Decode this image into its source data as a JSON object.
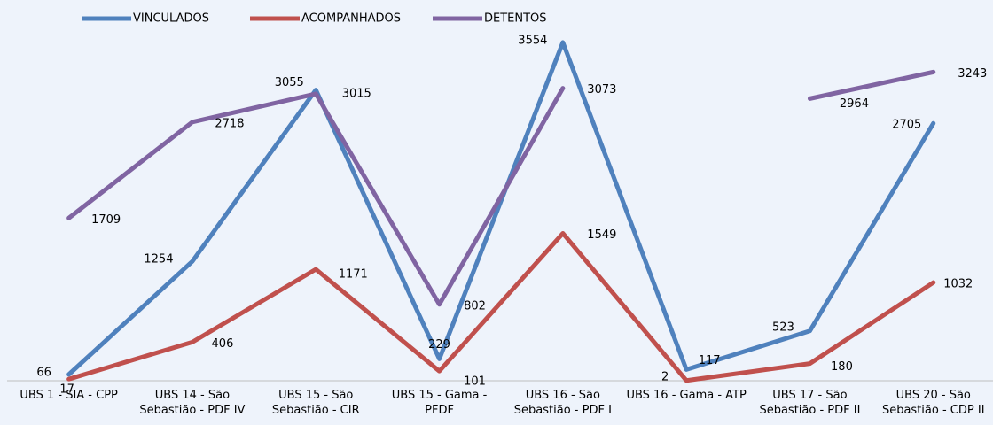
{
  "chart_data": {
    "type": "line",
    "categories": [
      "UBS 1 - SIA - CPP",
      "UBS 14 - São Sebastião - PDF IV",
      "UBS 15 - São Sebastião - CIR",
      "UBS 15 - Gama - PFDF",
      "UBS 16 - São Sebastião - PDF I",
      "UBS 16 - Gama - ATP",
      "UBS 17 - São Sebastião - PDF II",
      "UBS 20 - São Sebastião - CDP II"
    ],
    "series": [
      {
        "name": "VINCULADOS",
        "color": "#4f81bd",
        "values": [
          66,
          1254,
          3055,
          229,
          3554,
          117,
          523,
          2705
        ]
      },
      {
        "name": "ACOMPANHADOS",
        "color": "#c0504d",
        "values": [
          17,
          406,
          1171,
          101,
          1549,
          2,
          180,
          1032
        ]
      },
      {
        "name": "DETENTOS",
        "color": "#8064a2",
        "values": [
          1709,
          2718,
          3015,
          802,
          3073,
          null,
          2964,
          3243
        ]
      }
    ],
    "ylim": [
      0,
      3600
    ],
    "legend": "top"
  }
}
